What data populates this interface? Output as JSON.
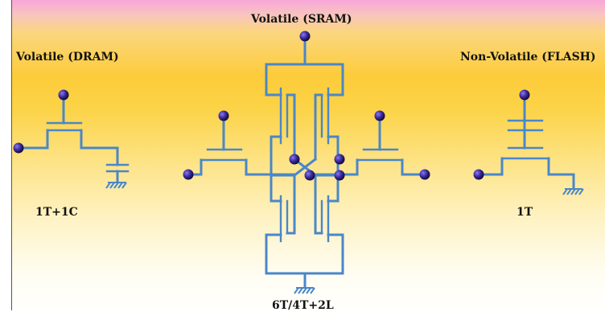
{
  "labels": {
    "dram": "Volatile (DRAM)",
    "sram": "Volatile (SRAM)",
    "flash": "Non-Volatile (FLASH)",
    "dram_count": "1T+1C",
    "sram_count": "6T/4T+2L",
    "flash_count": "1T"
  },
  "colors": {
    "wire": "#4a87c8",
    "terminal": "#2a1a7a",
    "terminal_highlight": "#6a55d8",
    "text": "#111111"
  }
}
